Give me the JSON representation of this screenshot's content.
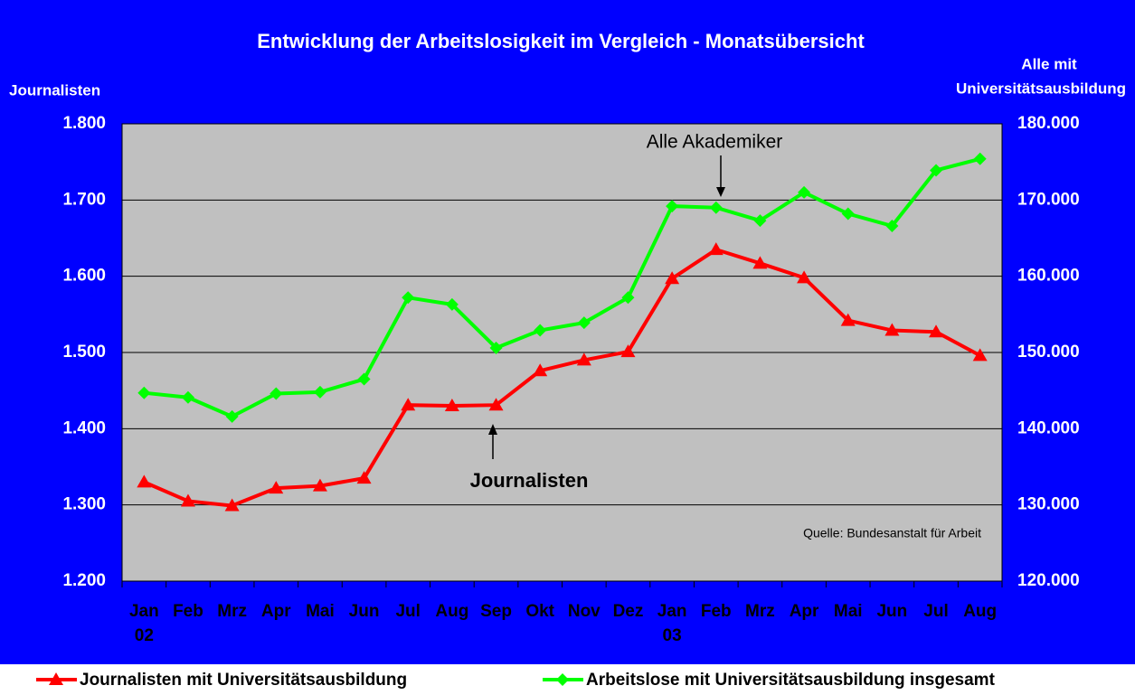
{
  "chart_data": {
    "type": "line",
    "title": "Entwicklung der Arbeitslosigkeit im Vergleich - Monatsübersicht",
    "y_label": "Journalisten",
    "y2_label": [
      "Alle mit",
      "Universitätsausbildung"
    ],
    "categories": [
      "Jan",
      "Feb",
      "Mrz",
      "Apr",
      "Mai",
      "Jun",
      "Jul",
      "Aug",
      "Sep",
      "Okt",
      "Nov",
      "Dez",
      "Jan",
      "Feb",
      "Mrz",
      "Apr",
      "Mai",
      "Jun",
      "Jul",
      "Aug"
    ],
    "year_labels": [
      "02",
      null,
      null,
      null,
      null,
      null,
      null,
      null,
      null,
      null,
      null,
      null,
      "03",
      null,
      null,
      null,
      null,
      null,
      null,
      null
    ],
    "series": [
      {
        "name": "Journalisten mit Universitätsausbildung",
        "color": "#ff0000",
        "marker": "triangle",
        "values": [
          1330,
          1305,
          1299,
          1322,
          1325,
          1335,
          1431,
          1430,
          1431,
          1476,
          1490,
          1501,
          1597,
          1635,
          1617,
          1598,
          1542,
          1529,
          1527,
          1496
        ]
      },
      {
        "name": "Arbeitslose mit Universitätsausbildung insgesamt",
        "color": "#00ff00",
        "marker": "diamond",
        "axis": "y2",
        "values": [
          144700,
          144100,
          141600,
          144600,
          144800,
          146500,
          157200,
          156300,
          150600,
          152900,
          153900,
          157200,
          169200,
          169000,
          167300,
          171000,
          168200,
          166600,
          173900,
          175400
        ]
      }
    ],
    "ylim": [
      1200,
      1800
    ],
    "yticks": [
      {
        "value": 1200,
        "label": "1.200"
      },
      {
        "value": 1300,
        "label": "1.300"
      },
      {
        "value": 1400,
        "label": "1.400"
      },
      {
        "value": 1500,
        "label": "1.500"
      },
      {
        "value": 1600,
        "label": "1.600"
      },
      {
        "value": 1700,
        "label": "1.700"
      },
      {
        "value": 1800,
        "label": "1.800"
      }
    ],
    "y2lim": [
      120000,
      180000
    ],
    "y2ticks": [
      {
        "value": 120000,
        "label": "120.000"
      },
      {
        "value": 130000,
        "label": "130.000"
      },
      {
        "value": 140000,
        "label": "140.000"
      },
      {
        "value": 150000,
        "label": "150.000"
      },
      {
        "value": 160000,
        "label": "160.000"
      },
      {
        "value": 170000,
        "label": "170.000"
      },
      {
        "value": 180000,
        "label": "180.000"
      }
    ],
    "grid": true,
    "annotations": [
      "Alle Akademiker",
      "Journalisten",
      "Quelle: Bundesanstalt für Arbeit"
    ]
  }
}
